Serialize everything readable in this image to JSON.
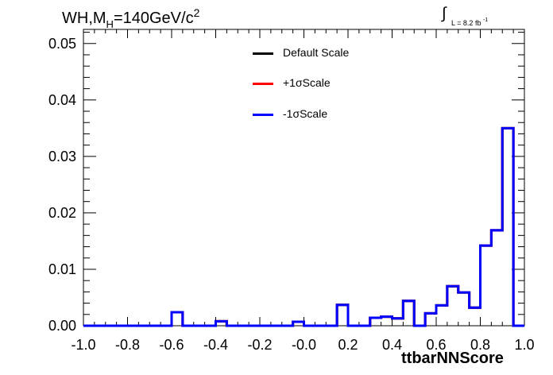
{
  "title": {
    "prefix": "WH,M",
    "sub": "H",
    "main": "=140GeV/c",
    "sup": "2"
  },
  "lumi": {
    "integral": "∫",
    "text": "L = 8.2 fb",
    "sup": "-1"
  },
  "legend": [
    {
      "label": "Default Scale",
      "color": "#000000"
    },
    {
      "label": "+1σScale",
      "color": "#ff0000"
    },
    {
      "label": "-1σScale",
      "color": "#0000ff"
    }
  ],
  "chart_data": {
    "type": "line",
    "xlabel": "ttbarNNScore",
    "ylabel": "",
    "xlim": [
      -1.0,
      1.0
    ],
    "ylim": [
      0,
      0.0525
    ],
    "xticks": [
      "-1.0",
      "-0.8",
      "-0.6",
      "-0.4",
      "-0.2",
      "-0.0",
      "0.2",
      "0.4",
      "0.6",
      "0.8",
      "1.0"
    ],
    "yticks": [
      "0.00",
      "0.01",
      "0.02",
      "0.03",
      "0.04",
      "0.05"
    ],
    "bin_edges": [
      -1.0,
      -0.95,
      -0.9,
      -0.85,
      -0.8,
      -0.75,
      -0.7,
      -0.65,
      -0.6,
      -0.55,
      -0.5,
      -0.45,
      -0.4,
      -0.35,
      -0.3,
      -0.25,
      -0.2,
      -0.15,
      -0.1,
      -0.05,
      0.0,
      0.05,
      0.1,
      0.15,
      0.2,
      0.25,
      0.3,
      0.35,
      0.4,
      0.45,
      0.5,
      0.55,
      0.6,
      0.65,
      0.7,
      0.75,
      0.8,
      0.85,
      0.9,
      0.95,
      1.0
    ],
    "series": [
      {
        "name": "Default Scale",
        "color": "#000000",
        "values": [
          0,
          0,
          0,
          0,
          0,
          0,
          0,
          0,
          0.0024,
          0,
          0,
          0,
          0.0008,
          0,
          0,
          0,
          0,
          0,
          0,
          0.0007,
          0,
          0,
          0,
          0.0037,
          0,
          0,
          0.0014,
          0.0016,
          0.0013,
          0.0044,
          0,
          0.0022,
          0.0036,
          0.007,
          0.0059,
          0.0032,
          0.0142,
          0.0169,
          0.035,
          0
        ]
      },
      {
        "name": "+1σScale",
        "color": "#ff0000",
        "values": [
          0,
          0,
          0,
          0,
          0,
          0,
          0,
          0,
          0.0024,
          0,
          0,
          0,
          0.0008,
          0,
          0,
          0,
          0,
          0,
          0,
          0.0007,
          0,
          0,
          0,
          0.0037,
          0,
          0,
          0.0014,
          0.0016,
          0.0013,
          0.0044,
          0,
          0.0022,
          0.0036,
          0.007,
          0.0059,
          0.0032,
          0.0142,
          0.0169,
          0.035,
          0
        ]
      },
      {
        "name": "-1σScale",
        "color": "#0000ff",
        "values": [
          0,
          0,
          0,
          0,
          0,
          0,
          0,
          0,
          0.0024,
          0,
          0,
          0,
          0.0008,
          0,
          0,
          0,
          0,
          0,
          0,
          0.0007,
          0,
          0,
          0,
          0.0037,
          0,
          0,
          0.0014,
          0.0016,
          0.0013,
          0.0044,
          0,
          0.0022,
          0.0036,
          0.007,
          0.0059,
          0.0032,
          0.0142,
          0.0169,
          0.035,
          0
        ]
      }
    ]
  }
}
